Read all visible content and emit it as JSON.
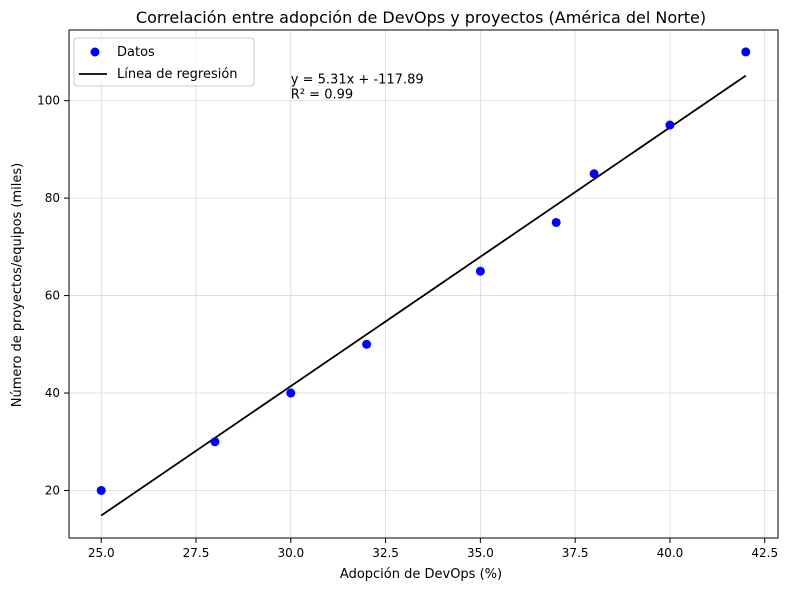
{
  "chart_data": {
    "type": "scatter",
    "title": "Correlación entre adopción de DevOps y proyectos (América del Norte)",
    "xlabel": "Adopción de DevOps (%)",
    "ylabel": "Número de proyectos/equipos (miles)",
    "xlim": [
      24.15,
      42.85
    ],
    "ylim": [
      10.25,
      114.5
    ],
    "xticks": [
      25.0,
      27.5,
      30.0,
      32.5,
      35.0,
      37.5,
      40.0,
      42.5
    ],
    "xtick_labels": [
      "25.0",
      "27.5",
      "30.0",
      "32.5",
      "35.0",
      "37.5",
      "40.0",
      "42.5"
    ],
    "yticks": [
      20,
      40,
      60,
      80,
      100
    ],
    "ytick_labels": [
      "20",
      "40",
      "60",
      "80",
      "100"
    ],
    "grid": true,
    "legend_position": "top-left",
    "series": [
      {
        "name": "Datos",
        "kind": "scatter",
        "color": "#0000ff",
        "x": [
          25,
          28,
          30,
          32,
          35,
          37,
          38,
          40,
          42
        ],
        "y": [
          20,
          30,
          40,
          50,
          65,
          75,
          85,
          95,
          110
        ]
      },
      {
        "name": "Línea de regresión",
        "kind": "line",
        "color": "#000000",
        "slope": 5.31,
        "intercept": -117.89,
        "x_range": [
          25,
          42
        ]
      }
    ],
    "annotations": {
      "equation": "y = 5.31x + -117.89",
      "r2": "R² = 0.99",
      "anchor": {
        "x": 30.0,
        "y": 103.5
      }
    }
  }
}
